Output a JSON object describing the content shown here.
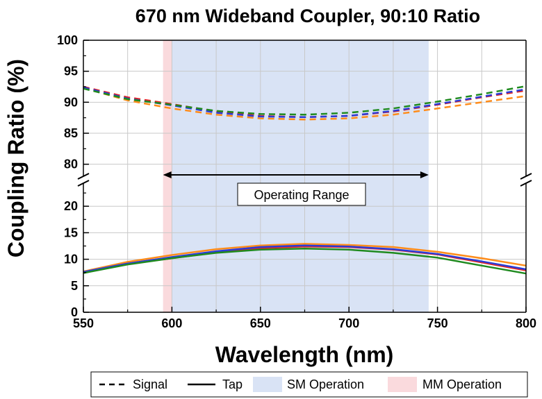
{
  "chart_data": {
    "type": "line",
    "title": "670 nm Wideband Coupler, 90:10 Ratio",
    "xlabel": "Wavelength (nm)",
    "ylabel": "Coupling Ratio (%)",
    "xlim": [
      550,
      800
    ],
    "x_ticks": [
      "550",
      "600",
      "650",
      "700",
      "750",
      "800"
    ],
    "ylim_upper": [
      77.5,
      100
    ],
    "y_ticks_upper": [
      "80",
      "85",
      "90",
      "95",
      "100"
    ],
    "ylim_lower": [
      0,
      25
    ],
    "y_ticks_lower": [
      "0",
      "5",
      "10",
      "15",
      "20"
    ],
    "axis_break": "between 20 and 80",
    "grid": true,
    "regions": [
      {
        "name": "MM Operation",
        "x": [
          595,
          600
        ],
        "color": "#fadadd"
      },
      {
        "name": "SM Operation",
        "x": [
          600,
          745
        ],
        "color": "#d9e3f5"
      }
    ],
    "annotation": {
      "text": "Operating Range",
      "x": [
        595,
        745
      ]
    },
    "x": [
      550,
      575,
      600,
      625,
      650,
      675,
      700,
      725,
      750,
      775,
      800
    ],
    "series": [
      {
        "group": "Signal",
        "color": "#ff8c1a",
        "style": "dash",
        "values": [
          92.3,
          90.3,
          89.0,
          88.0,
          87.4,
          87.2,
          87.4,
          88.0,
          89.0,
          90.0,
          91.0
        ]
      },
      {
        "group": "Signal",
        "color": "#e52421",
        "style": "dash",
        "values": [
          92.5,
          90.8,
          89.7,
          88.5,
          87.8,
          87.6,
          87.8,
          88.5,
          89.6,
          90.8,
          91.9
        ]
      },
      {
        "group": "Signal",
        "color": "#2b3bd6",
        "style": "dash",
        "values": [
          92.4,
          90.6,
          89.5,
          88.3,
          87.7,
          87.6,
          87.8,
          88.6,
          89.7,
          90.9,
          92.1
        ]
      },
      {
        "group": "Signal",
        "color": "#1f8a1f",
        "style": "dash",
        "values": [
          92.2,
          90.5,
          89.6,
          88.6,
          88.1,
          88.0,
          88.3,
          89.0,
          90.1,
          91.3,
          92.6
        ]
      },
      {
        "group": "Tap",
        "color": "#ff8c1a",
        "style": "solid",
        "values": [
          7.7,
          9.5,
          10.8,
          11.9,
          12.6,
          12.9,
          12.7,
          12.3,
          11.4,
          10.2,
          8.8
        ]
      },
      {
        "group": "Tap",
        "color": "#e52421",
        "style": "solid",
        "values": [
          7.5,
          9.1,
          10.2,
          11.3,
          12.1,
          12.4,
          12.3,
          11.8,
          10.9,
          9.4,
          7.9
        ]
      },
      {
        "group": "Tap",
        "color": "#2b3bd6",
        "style": "solid",
        "values": [
          7.6,
          9.2,
          10.4,
          11.5,
          12.3,
          12.6,
          12.4,
          11.9,
          11.0,
          9.6,
          8.1
        ]
      },
      {
        "group": "Tap",
        "color": "#1f8a1f",
        "style": "solid",
        "values": [
          7.4,
          9.0,
          10.2,
          11.2,
          11.8,
          12.0,
          11.8,
          11.2,
          10.3,
          8.8,
          7.3
        ]
      }
    ],
    "legend": {
      "placement": "bottom",
      "items": [
        {
          "label": "Signal",
          "kind": "dash"
        },
        {
          "label": "Tap",
          "kind": "solid"
        },
        {
          "label": "SM Operation",
          "kind": "patch",
          "color": "#d9e3f5"
        },
        {
          "label": "MM Operation",
          "kind": "patch",
          "color": "#fadadd"
        }
      ]
    }
  }
}
